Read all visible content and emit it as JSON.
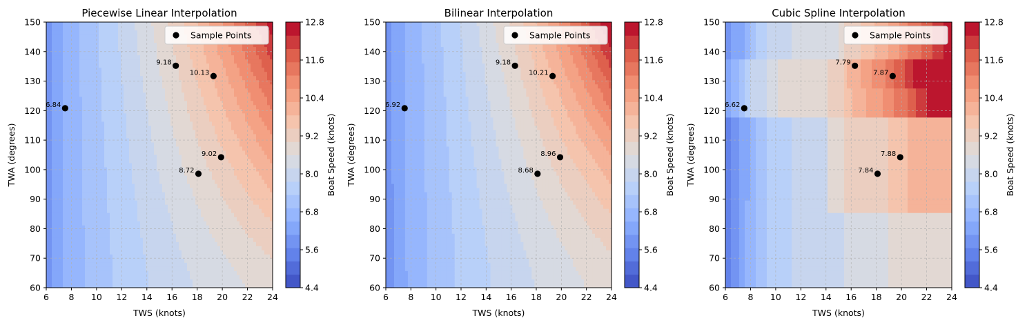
{
  "colorbar": {
    "label": "Boat Speed (knots)",
    "min": 4.4,
    "max": 12.8,
    "levels": 20,
    "ticks": [
      "4.4",
      "5.6",
      "6.8",
      "8.0",
      "9.2",
      "10.4",
      "11.6",
      "12.8"
    ]
  },
  "axes_common": {
    "xlabel": "TWS (knots)",
    "ylabel": "TWA (degrees)",
    "xlim": [
      6,
      24
    ],
    "ylim": [
      60,
      150
    ],
    "xticks": [
      "6",
      "8",
      "10",
      "12",
      "14",
      "16",
      "18",
      "20",
      "22",
      "24"
    ],
    "yticks": [
      "60",
      "70",
      "80",
      "90",
      "100",
      "110",
      "120",
      "130",
      "140",
      "150"
    ],
    "grid": true,
    "legend_label": "Sample Points",
    "legend_position": "top-right"
  },
  "chart_data": [
    {
      "type": "heatmap",
      "title": "Piecewise Linear Interpolation",
      "method": "linear",
      "samples": [
        {
          "x": 7.5,
          "y": 120.8,
          "label": "6.84"
        },
        {
          "x": 16.3,
          "y": 135.2,
          "label": "9.18"
        },
        {
          "x": 19.3,
          "y": 131.7,
          "label": "10.13"
        },
        {
          "x": 19.9,
          "y": 104.2,
          "label": "9.02"
        },
        {
          "x": 18.1,
          "y": 98.6,
          "label": "8.72"
        }
      ]
    },
    {
      "type": "heatmap",
      "title": "Bilinear Interpolation",
      "method": "bilinear",
      "samples": [
        {
          "x": 7.5,
          "y": 120.8,
          "label": "6.92"
        },
        {
          "x": 16.3,
          "y": 135.2,
          "label": "9.18"
        },
        {
          "x": 19.3,
          "y": 131.7,
          "label": "10.21"
        },
        {
          "x": 19.9,
          "y": 104.2,
          "label": "8.96"
        },
        {
          "x": 18.1,
          "y": 98.6,
          "label": "8.68"
        }
      ]
    },
    {
      "type": "heatmap",
      "title": "Cubic Spline Interpolation",
      "method": "cubic",
      "samples": [
        {
          "x": 7.5,
          "y": 120.8,
          "label": "6.62"
        },
        {
          "x": 16.3,
          "y": 135.2,
          "label": "7.79"
        },
        {
          "x": 19.3,
          "y": 131.7,
          "label": "7.87"
        },
        {
          "x": 19.9,
          "y": 104.2,
          "label": "7.88"
        },
        {
          "x": 18.1,
          "y": 98.6,
          "label": "7.84"
        }
      ]
    }
  ]
}
